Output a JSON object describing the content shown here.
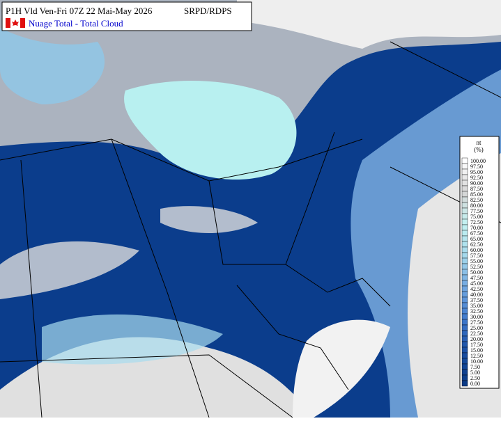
{
  "header": {
    "title": "P1H Vld Ven-Fri 07Z 22 Mai-May 2026",
    "model": "SRPD/RDPS",
    "subtitle": "Nuage Total -  Total Cloud"
  },
  "legend": {
    "title": "nt",
    "unit": "(%)",
    "labels": [
      "100.00",
      "97.50",
      "95.00",
      "92.50",
      "90.00",
      "87.50",
      "85.00",
      "82.50",
      "80.00",
      "77.50",
      "75.00",
      "72.50",
      "70.00",
      "67.50",
      "65.00",
      "62.50",
      "60.00",
      "57.50",
      "55.00",
      "52.50",
      "50.00",
      "47.50",
      "45.00",
      "42.50",
      "40.00",
      "37.50",
      "35.00",
      "32.50",
      "30.00",
      "27.50",
      "25.00",
      "22.50",
      "20.00",
      "17.50",
      "15.00",
      "12.50",
      "10.00",
      "7.50",
      "5.00",
      "2.50",
      "0.00"
    ],
    "color_stops": [
      "#ffffff",
      "#d6d6d6",
      "#c2f2f2",
      "#a4d8ec",
      "#6fa6e0",
      "#3f78cc",
      "#1a4fa3",
      "#0a3a86"
    ]
  }
}
